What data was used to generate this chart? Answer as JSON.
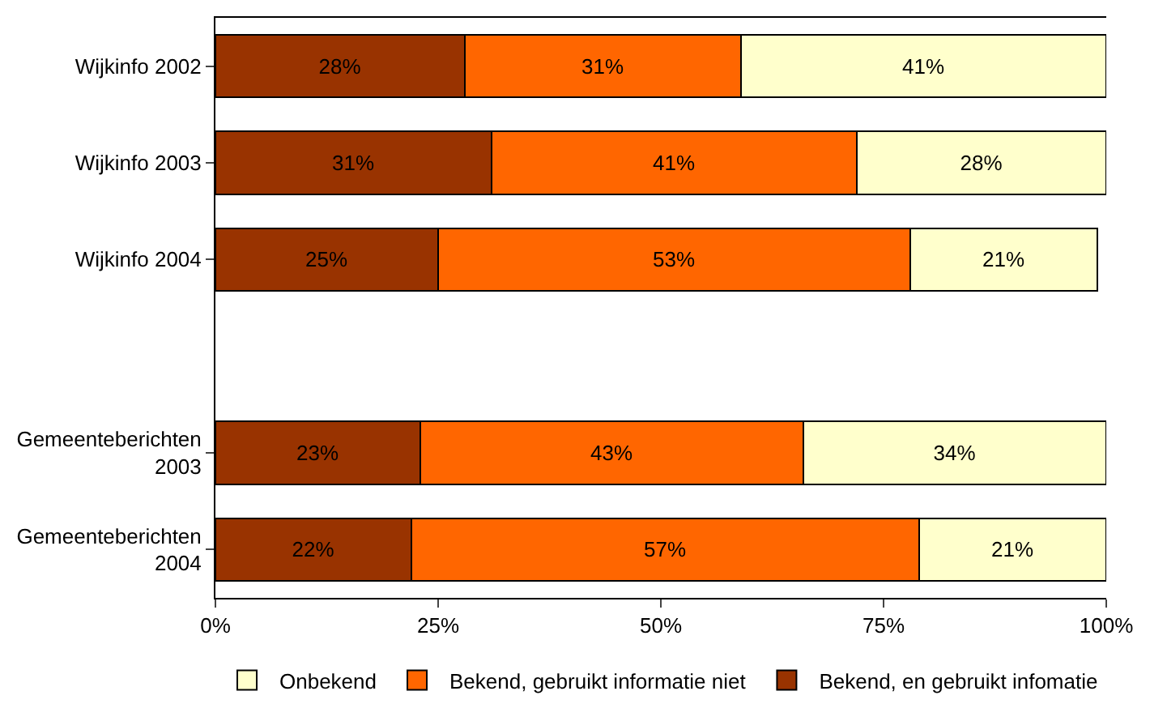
{
  "chart_data": {
    "type": "bar",
    "orientation": "horizontal",
    "stacked": true,
    "categories": [
      "Wijkinfo 2002",
      "Wijkinfo 2003",
      "Wijkinfo 2004",
      null,
      "Gemeenteberichten 2003",
      "Gemeenteberichten 2004"
    ],
    "series": [
      {
        "name": "Bekend, en gebruikt infomatie",
        "color": "#993300",
        "values": [
          28,
          31,
          25,
          null,
          23,
          22
        ],
        "value_labels": [
          "28%",
          "31%",
          "25%",
          null,
          "23%",
          "22%"
        ]
      },
      {
        "name": "Bekend, gebruikt informatie niet",
        "color": "#ff6600",
        "values": [
          31,
          41,
          53,
          null,
          43,
          57
        ],
        "value_labels": [
          "31%",
          "41%",
          "53%",
          null,
          "43%",
          "57%"
        ]
      },
      {
        "name": "Onbekend",
        "color": "#ffffcc",
        "values": [
          41,
          28,
          21,
          null,
          34,
          21
        ],
        "value_labels": [
          "41%",
          "28%",
          "21%",
          null,
          "34%",
          "21%"
        ]
      }
    ],
    "xlim": [
      0,
      100
    ],
    "xticks": [
      {
        "value": 0,
        "label": "0%"
      },
      {
        "value": 25,
        "label": "25%"
      },
      {
        "value": 50,
        "label": "50%"
      },
      {
        "value": 75,
        "label": "75%"
      },
      {
        "value": 100,
        "label": "100%"
      }
    ],
    "grid": false,
    "legend": "bottom"
  }
}
